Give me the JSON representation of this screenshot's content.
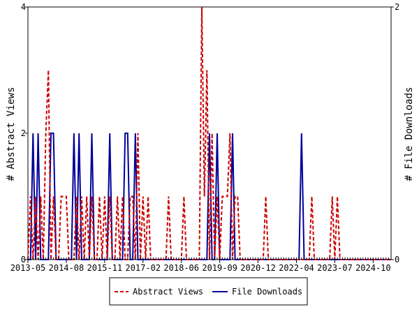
{
  "chart_data": {
    "type": "line",
    "x_ticks": [
      "2013-05",
      "2014-08",
      "2015-11",
      "2017-02",
      "2018-06",
      "2019-09",
      "2020-12",
      "2022-04",
      "2023-07",
      "2024-10"
    ],
    "y_left": {
      "label": "# Abstract Views",
      "ticks": [
        "0",
        "2",
        "4"
      ],
      "lim": [
        0,
        4
      ]
    },
    "y_right": {
      "label": "# File Downloads",
      "ticks": [
        "0",
        "2"
      ],
      "lim": [
        0,
        2
      ]
    },
    "x_range_months": [
      0,
      142
    ],
    "series": [
      {
        "name": "Abstract Views",
        "axis": "left",
        "color": "#cc0000",
        "style": "dashed",
        "points": [
          [
            0,
            0
          ],
          [
            1,
            1
          ],
          [
            2,
            0
          ],
          [
            3,
            1
          ],
          [
            4,
            0
          ],
          [
            5,
            1
          ],
          [
            6,
            0
          ],
          [
            7,
            2
          ],
          [
            8,
            3
          ],
          [
            9,
            0
          ],
          [
            10,
            1
          ],
          [
            11,
            0
          ],
          [
            12,
            0
          ],
          [
            13,
            1
          ],
          [
            14,
            1
          ],
          [
            15,
            1
          ],
          [
            16,
            0
          ],
          [
            18,
            0
          ],
          [
            19,
            1
          ],
          [
            20,
            0
          ],
          [
            21,
            1
          ],
          [
            22,
            0
          ],
          [
            23,
            1
          ],
          [
            24,
            0
          ],
          [
            25,
            1
          ],
          [
            26,
            0
          ],
          [
            27,
            0
          ],
          [
            28,
            1
          ],
          [
            29,
            0
          ],
          [
            30,
            1
          ],
          [
            31,
            0
          ],
          [
            32,
            1
          ],
          [
            33,
            0
          ],
          [
            34,
            0
          ],
          [
            35,
            1
          ],
          [
            36,
            0
          ],
          [
            37,
            1
          ],
          [
            38,
            0
          ],
          [
            39,
            0
          ],
          [
            40,
            1
          ],
          [
            41,
            1
          ],
          [
            42,
            0
          ],
          [
            43,
            2
          ],
          [
            44,
            0
          ],
          [
            45,
            1
          ],
          [
            46,
            0
          ],
          [
            47,
            1
          ],
          [
            48,
            0
          ],
          [
            51,
            0
          ],
          [
            52,
            0
          ],
          [
            53,
            0
          ],
          [
            54,
            0
          ],
          [
            55,
            1
          ],
          [
            56,
            0
          ],
          [
            60,
            0
          ],
          [
            61,
            1
          ],
          [
            62,
            0
          ],
          [
            66,
            0
          ],
          [
            67,
            0
          ],
          [
            68,
            4
          ],
          [
            69,
            1
          ],
          [
            70,
            3
          ],
          [
            71,
            0
          ],
          [
            72,
            2
          ],
          [
            73,
            0
          ],
          [
            74,
            1
          ],
          [
            75,
            0
          ],
          [
            76,
            1
          ],
          [
            77,
            1
          ],
          [
            78,
            1
          ],
          [
            79,
            2
          ],
          [
            80,
            0
          ],
          [
            81,
            1
          ],
          [
            82,
            1
          ],
          [
            83,
            0
          ],
          [
            86,
            0
          ],
          [
            87,
            0
          ],
          [
            92,
            0
          ],
          [
            93,
            1
          ],
          [
            94,
            0
          ],
          [
            106,
            0
          ],
          [
            107,
            0
          ],
          [
            110,
            0
          ],
          [
            111,
            1
          ],
          [
            112,
            0
          ],
          [
            118,
            0
          ],
          [
            119,
            1
          ],
          [
            120,
            0
          ],
          [
            121,
            1
          ],
          [
            122,
            0
          ],
          [
            142,
            0
          ]
        ]
      },
      {
        "name": "File Downloads",
        "axis": "right",
        "color": "#000099",
        "style": "solid",
        "points": [
          [
            0,
            0
          ],
          [
            1,
            0
          ],
          [
            2,
            1
          ],
          [
            3,
            0
          ],
          [
            4,
            1
          ],
          [
            5,
            0
          ],
          [
            6,
            0
          ],
          [
            7,
            0
          ],
          [
            8,
            0
          ],
          [
            9,
            1
          ],
          [
            10,
            1
          ],
          [
            11,
            0
          ],
          [
            12,
            0
          ],
          [
            13,
            0
          ],
          [
            16,
            0
          ],
          [
            17,
            0
          ],
          [
            18,
            1
          ],
          [
            19,
            0
          ],
          [
            20,
            1
          ],
          [
            21,
            0
          ],
          [
            22,
            0
          ],
          [
            23,
            0
          ],
          [
            24,
            0
          ],
          [
            25,
            1
          ],
          [
            26,
            0
          ],
          [
            27,
            0
          ],
          [
            28,
            0
          ],
          [
            29,
            0
          ],
          [
            30,
            0
          ],
          [
            31,
            0
          ],
          [
            32,
            1
          ],
          [
            33,
            0
          ],
          [
            34,
            0
          ],
          [
            35,
            0
          ],
          [
            36,
            0
          ],
          [
            37,
            0
          ],
          [
            38,
            1
          ],
          [
            39,
            1
          ],
          [
            40,
            0
          ],
          [
            41,
            0
          ],
          [
            42,
            1
          ],
          [
            43,
            0
          ],
          [
            44,
            0
          ],
          [
            45,
            0
          ],
          [
            46,
            0
          ],
          [
            47,
            0
          ],
          [
            64,
            0
          ],
          [
            65,
            0
          ],
          [
            66,
            0
          ],
          [
            67,
            0
          ],
          [
            68,
            0
          ],
          [
            69,
            0
          ],
          [
            70,
            0
          ],
          [
            71,
            1
          ],
          [
            72,
            0
          ],
          [
            73,
            0
          ],
          [
            74,
            1
          ],
          [
            75,
            0
          ],
          [
            76,
            0
          ],
          [
            77,
            0
          ],
          [
            78,
            0
          ],
          [
            79,
            0
          ],
          [
            80,
            1
          ],
          [
            81,
            0
          ],
          [
            82,
            0
          ],
          [
            83,
            0
          ],
          [
            84,
            0
          ],
          [
            106,
            0
          ],
          [
            107,
            1
          ],
          [
            108,
            0
          ],
          [
            109,
            0
          ],
          [
            142,
            0
          ]
        ]
      }
    ],
    "legend": [
      "Abstract Views",
      "File Downloads"
    ],
    "legend_position": "bottom"
  }
}
